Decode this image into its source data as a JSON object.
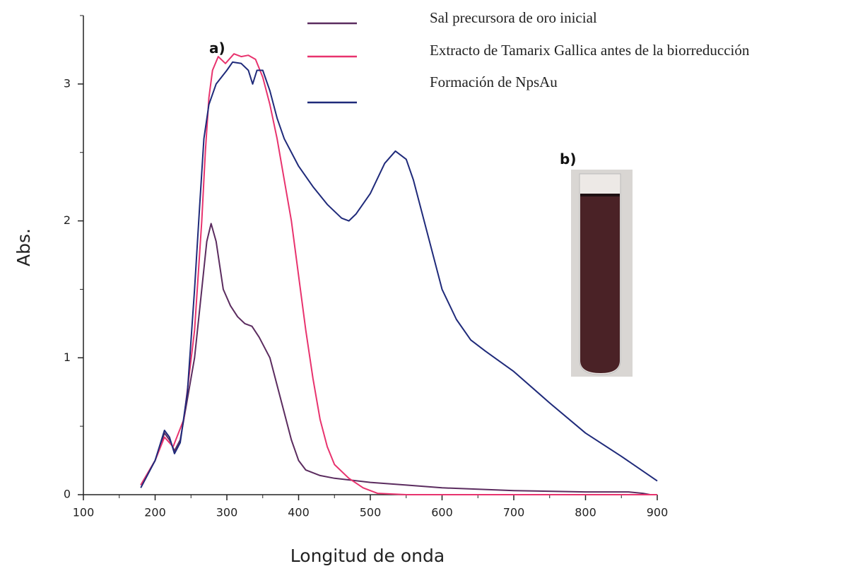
{
  "chart_data": {
    "type": "line",
    "x_label": "Longitud de onda",
    "y_label": "Abs.",
    "xlim": [
      100,
      900
    ],
    "ylim": [
      0,
      3.5
    ],
    "xticks": [
      100,
      200,
      300,
      400,
      500,
      600,
      700,
      800,
      900
    ],
    "yticks": [
      0,
      1,
      2,
      3
    ],
    "xminorticks": [
      150,
      250,
      350,
      450,
      550,
      650,
      750,
      850
    ],
    "yminorticks": [
      0.5,
      1.5,
      2.5,
      3.5
    ],
    "annotations": [
      "a)",
      "b)"
    ],
    "series": [
      {
        "name": "Sal precursora de oro inicial",
        "color": "#5b2c5f",
        "x": [
          180,
          200,
          213,
          220,
          227,
          235,
          245,
          255,
          265,
          272,
          278,
          285,
          295,
          305,
          315,
          325,
          335,
          345,
          360,
          375,
          390,
          400,
          410,
          430,
          450,
          500,
          550,
          600,
          700,
          800,
          860,
          880,
          890
        ],
        "values": [
          0.07,
          0.25,
          0.45,
          0.4,
          0.32,
          0.4,
          0.7,
          1.0,
          1.5,
          1.85,
          1.98,
          1.85,
          1.5,
          1.38,
          1.3,
          1.25,
          1.23,
          1.15,
          1.0,
          0.7,
          0.4,
          0.25,
          0.18,
          0.14,
          0.12,
          0.09,
          0.07,
          0.05,
          0.03,
          0.02,
          0.02,
          0.01,
          0.0
        ]
      },
      {
        "name": "Extracto de Tamarix Gallica antes de la biorreducción",
        "color": "#e8336e",
        "x": [
          180,
          200,
          213,
          225,
          240,
          255,
          265,
          270,
          275,
          280,
          288,
          298,
          310,
          320,
          330,
          340,
          350,
          360,
          370,
          380,
          390,
          400,
          410,
          420,
          430,
          440,
          450,
          470,
          490,
          510,
          550,
          700,
          900
        ],
        "values": [
          0.07,
          0.25,
          0.42,
          0.35,
          0.55,
          1.2,
          2.0,
          2.5,
          2.9,
          3.1,
          3.2,
          3.15,
          3.22,
          3.2,
          3.21,
          3.18,
          3.05,
          2.85,
          2.6,
          2.3,
          2.0,
          1.6,
          1.2,
          0.85,
          0.55,
          0.35,
          0.22,
          0.12,
          0.05,
          0.01,
          0.0,
          0.0,
          0.0
        ]
      },
      {
        "name": "Formación de NpsAu",
        "color": "#1f2a7a",
        "x": [
          180,
          200,
          213,
          220,
          227,
          235,
          245,
          255,
          262,
          268,
          275,
          285,
          300,
          308,
          320,
          330,
          336,
          342,
          350,
          360,
          370,
          380,
          400,
          420,
          440,
          460,
          470,
          480,
          500,
          520,
          535,
          550,
          560,
          580,
          600,
          620,
          640,
          660,
          700,
          750,
          800,
          850,
          900
        ],
        "values": [
          0.05,
          0.25,
          0.47,
          0.42,
          0.3,
          0.38,
          0.75,
          1.5,
          2.1,
          2.6,
          2.85,
          3.0,
          3.1,
          3.16,
          3.15,
          3.1,
          3.0,
          3.1,
          3.1,
          2.95,
          2.75,
          2.6,
          2.4,
          2.25,
          2.12,
          2.02,
          2.0,
          2.05,
          2.2,
          2.42,
          2.51,
          2.45,
          2.3,
          1.9,
          1.5,
          1.28,
          1.13,
          1.05,
          0.9,
          0.67,
          0.45,
          0.28,
          0.1
        ]
      }
    ]
  }
}
